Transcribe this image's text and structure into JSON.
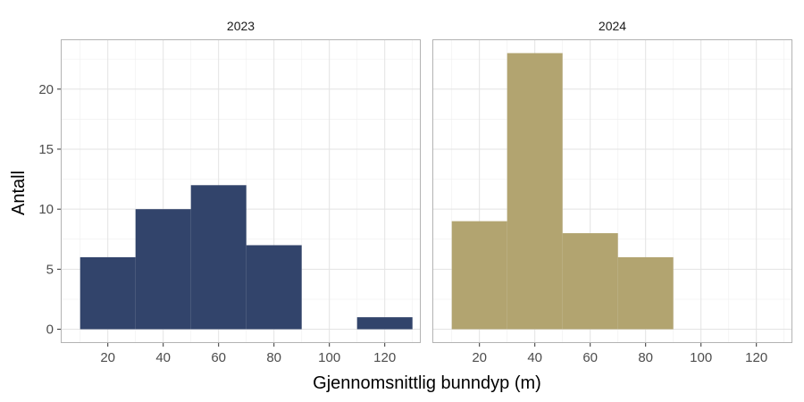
{
  "chart_data": {
    "type": "bar",
    "subtype": "faceted-histogram",
    "xlabel": "Gjennomsnittlig bunndyp (m)",
    "ylabel": "Antall",
    "xlim": [
      3,
      133
    ],
    "ylim": [
      -1.15,
      24.15
    ],
    "x_ticks": [
      20,
      40,
      60,
      80,
      100,
      120
    ],
    "y_ticks": [
      0,
      5,
      10,
      15,
      20
    ],
    "bin_width": 20,
    "grid": true,
    "panel_border_color": "#b3b3b3",
    "facets": [
      {
        "label": "2023",
        "color": "#32446b",
        "bins": [
          {
            "x0": 10,
            "x1": 30,
            "count": 6
          },
          {
            "x0": 30,
            "x1": 50,
            "count": 10
          },
          {
            "x0": 50,
            "x1": 70,
            "count": 12
          },
          {
            "x0": 70,
            "x1": 90,
            "count": 7
          },
          {
            "x0": 90,
            "x1": 110,
            "count": 0
          },
          {
            "x0": 110,
            "x1": 130,
            "count": 1
          }
        ]
      },
      {
        "label": "2024",
        "color": "#b2a470",
        "bins": [
          {
            "x0": 10,
            "x1": 30,
            "count": 9
          },
          {
            "x0": 30,
            "x1": 50,
            "count": 23
          },
          {
            "x0": 50,
            "x1": 70,
            "count": 8
          },
          {
            "x0": 70,
            "x1": 90,
            "count": 6
          }
        ]
      }
    ]
  }
}
